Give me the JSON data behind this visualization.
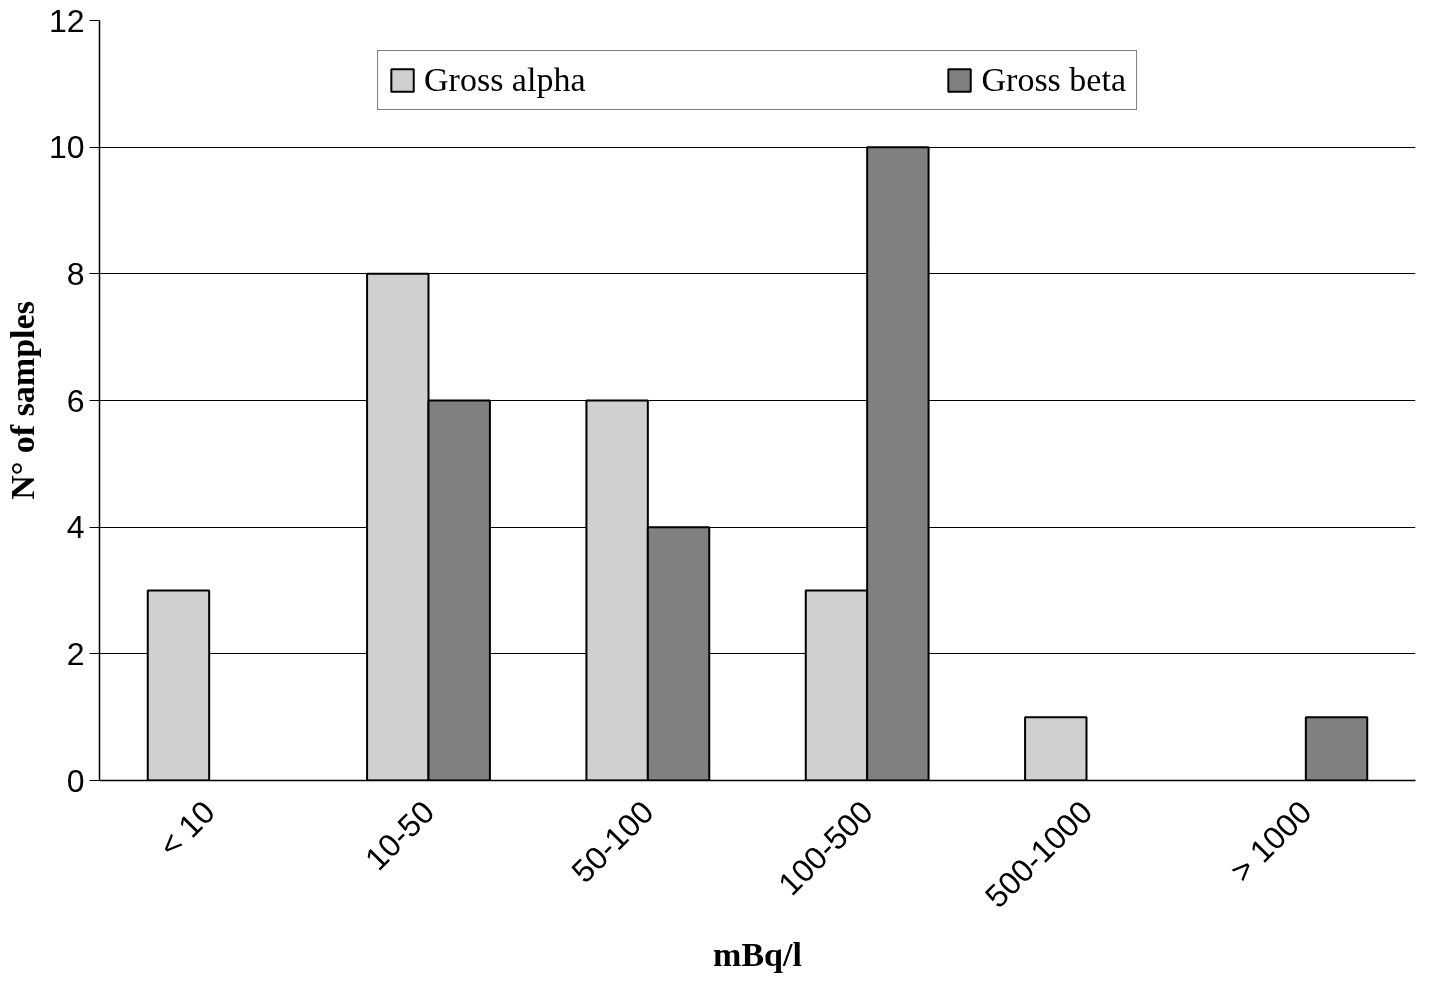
{
  "chart_data": {
    "type": "bar",
    "xlabel": "mBq/l",
    "ylabel": "N° of samples",
    "categories": [
      "< 10",
      "10-50",
      "50-100",
      "100-500",
      "500-1000",
      "> 1000"
    ],
    "series": [
      {
        "name": "Gross alpha",
        "color": "#d0d0d0",
        "values": [
          3,
          8,
          6,
          3,
          1,
          null
        ]
      },
      {
        "name": "Gross beta",
        "color": "#808080",
        "values": [
          null,
          6,
          4,
          10,
          null,
          1
        ]
      }
    ],
    "ylim": [
      0,
      12
    ],
    "yticks": [
      0,
      2,
      4,
      6,
      8,
      10,
      12
    ],
    "grid": "y",
    "legend": "top"
  }
}
